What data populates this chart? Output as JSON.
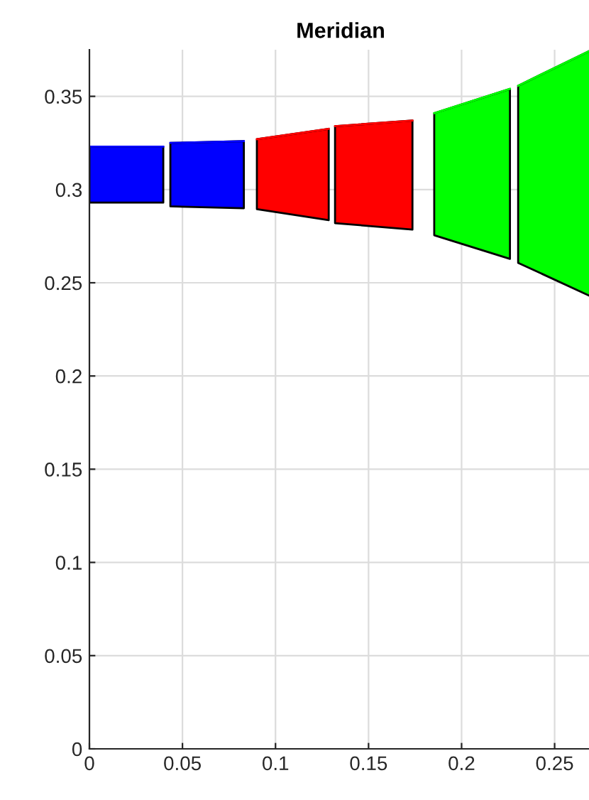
{
  "chart_data": {
    "type": "line",
    "title": "Meridian",
    "series": [
      {
        "color": "#0000ff",
        "x": [
          0,
          0.0397
        ],
        "values": [
          0.323,
          0.323
        ],
        "upper": [
          0.323,
          0.323
        ],
        "lower": [
          0.293,
          0.293
        ]
      },
      {
        "color": "#0000ff",
        "x": [
          0.0435,
          0.083
        ],
        "values": [
          0.325,
          0.326
        ],
        "upper": [
          0.325,
          0.326
        ],
        "lower": [
          0.291,
          0.29
        ]
      },
      {
        "color": "#ff0000",
        "x": [
          0.09,
          0.1286
        ],
        "values": [
          0.327,
          0.3326
        ],
        "upper": [
          0.327,
          0.3326
        ],
        "lower": [
          0.2895,
          0.2836
        ]
      },
      {
        "color": "#ff0000",
        "x": [
          0.132,
          0.1736
        ],
        "values": [
          0.334,
          0.337
        ],
        "upper": [
          0.334,
          0.337
        ],
        "lower": [
          0.282,
          0.2785
        ]
      },
      {
        "color": "#00ff00",
        "x": [
          0.1853,
          0.226
        ],
        "values": [
          0.341,
          0.354
        ],
        "upper": [
          0.341,
          0.354
        ],
        "lower": [
          0.2755,
          0.2628
        ]
      },
      {
        "color": "#00ff00",
        "x": [
          0.2304,
          0.27
        ],
        "values": [
          0.3557,
          0.375
        ],
        "upper": [
          0.3557,
          0.375
        ],
        "lower": [
          0.2607,
          0.2424
        ]
      }
    ],
    "xlim": [
      0,
      0.27
    ],
    "xticks": [
      0,
      0.05,
      0.1,
      0.15,
      0.2,
      0.25
    ],
    "ylim": [
      0,
      0.375
    ],
    "yticks": [
      0,
      0.05,
      0.1,
      0.15,
      0.2,
      0.25,
      0.3,
      0.35
    ],
    "grid": true
  }
}
